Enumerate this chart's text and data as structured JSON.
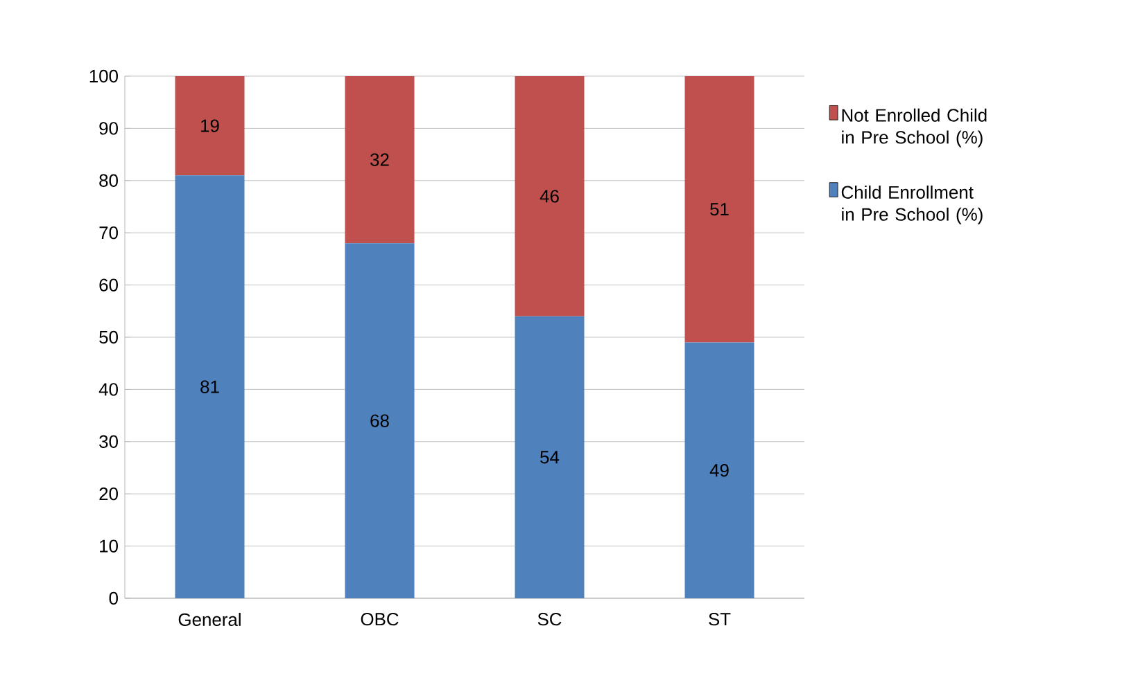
{
  "chart_data": {
    "type": "bar",
    "stacked": true,
    "categories": [
      "General",
      "OBC",
      "SC",
      "ST"
    ],
    "series": [
      {
        "name": "Child Enrollment in Pre School (%)",
        "color": "#4f81bd",
        "values": [
          81,
          68,
          54,
          49
        ]
      },
      {
        "name": "Not Enrolled Child in Pre School (%)",
        "color": "#c0504d",
        "values": [
          19,
          32,
          46,
          51
        ]
      }
    ],
    "ylim": [
      0,
      100
    ],
    "yticks": [
      0,
      10,
      20,
      30,
      40,
      50,
      60,
      70,
      80,
      90,
      100
    ],
    "grid": "y",
    "legend": "right",
    "data_labels": true
  }
}
